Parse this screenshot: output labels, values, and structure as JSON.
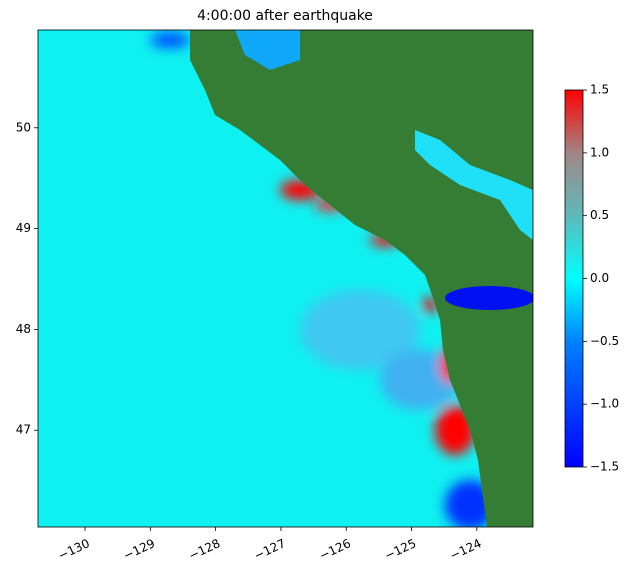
{
  "chart_data": {
    "type": "heatmap",
    "title": "4:00:00 after earthquake",
    "xlim": [
      -130.72,
      -123.14
    ],
    "ylim": [
      46.04,
      50.97
    ],
    "xticks": [
      {
        "value": -130,
        "label": "−130"
      },
      {
        "value": -129,
        "label": "−129"
      },
      {
        "value": -128,
        "label": "−128"
      },
      {
        "value": -127,
        "label": "−127"
      },
      {
        "value": -126,
        "label": "−126"
      },
      {
        "value": -125,
        "label": "−125"
      },
      {
        "value": -124,
        "label": "−124"
      }
    ],
    "yticks": [
      47,
      48,
      49,
      50
    ],
    "clim": [
      -1.5,
      1.5
    ],
    "cticks": [
      {
        "value": -1.5,
        "label": "−1.5"
      },
      {
        "value": -1.0,
        "label": "−1.0"
      },
      {
        "value": -0.5,
        "label": "−0.5"
      },
      {
        "value": 0,
        "label": "0.0"
      },
      0.5,
      {
        "value": 1.0,
        "label": "1.0"
      },
      1.5
    ]
  }
}
